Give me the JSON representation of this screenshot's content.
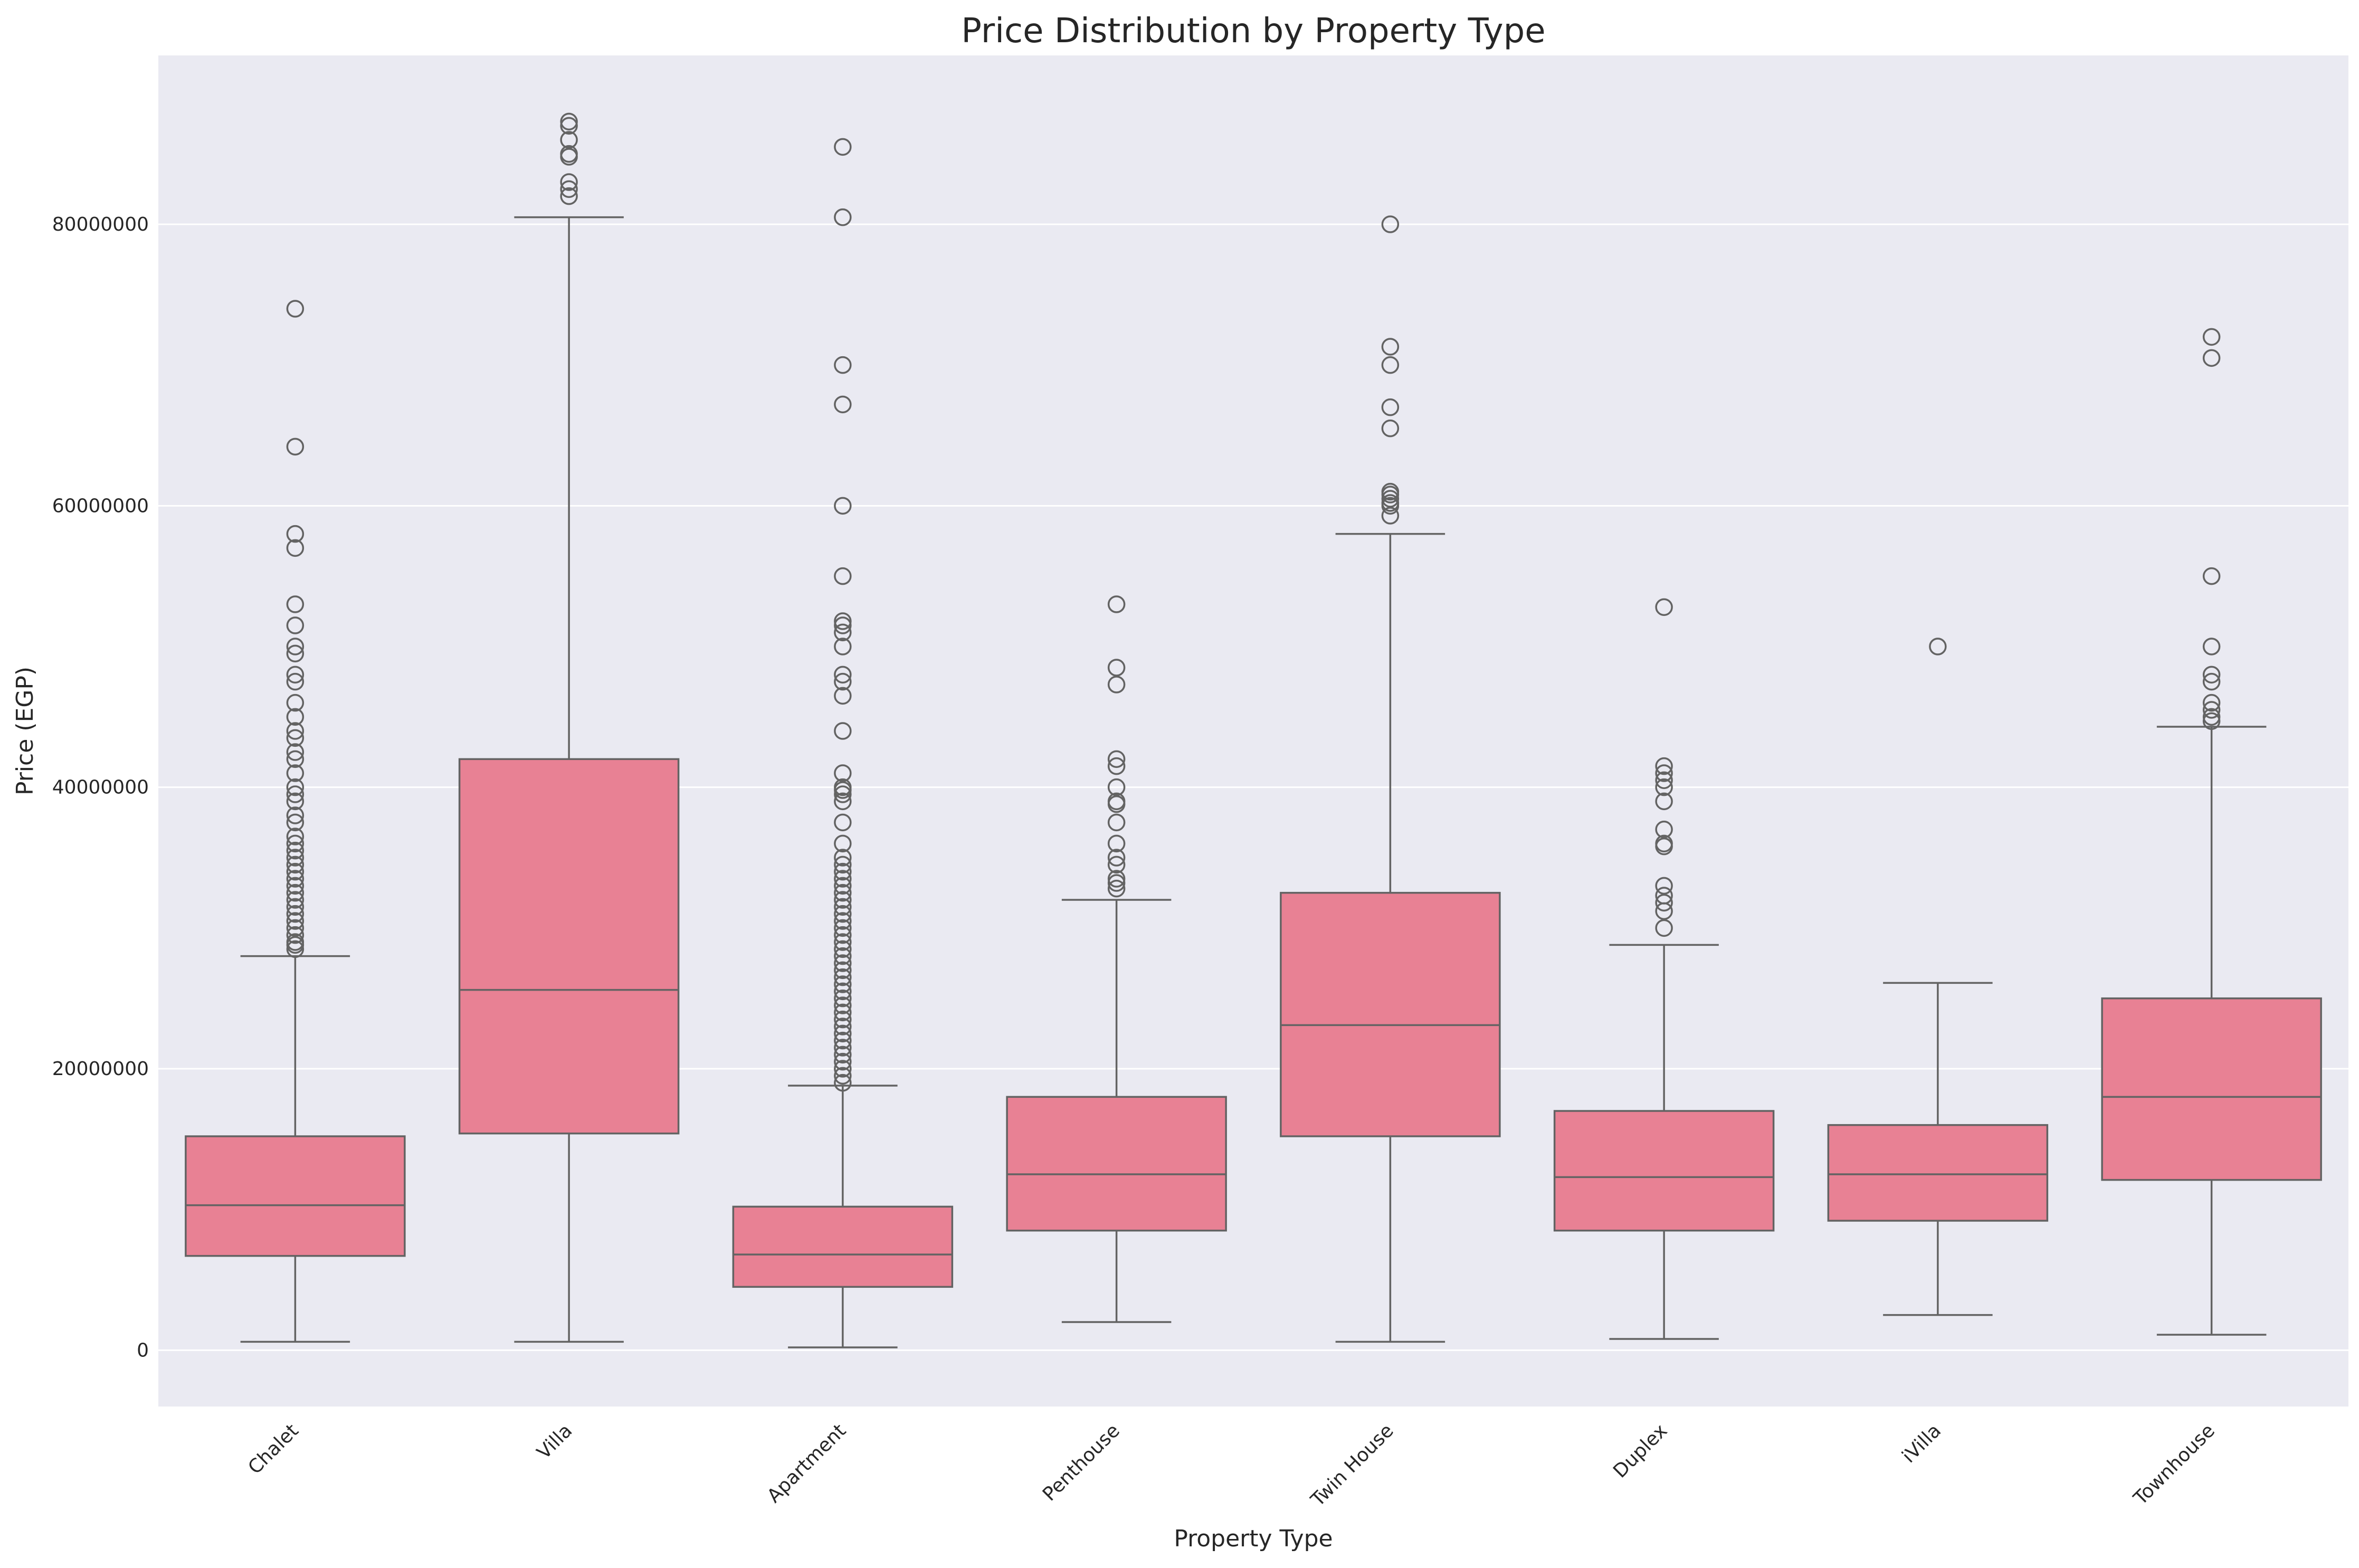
{
  "chart_data": {
    "type": "box",
    "title": "Price Distribution by Property Type",
    "xlabel": "Property Type",
    "ylabel": "Price (EGP)",
    "ylim": [
      -4000000,
      92000000
    ],
    "yticks": [
      0,
      20000000,
      40000000,
      60000000,
      80000000
    ],
    "ytick_labels": [
      "0",
      "20000000",
      "40000000",
      "60000000",
      "80000000"
    ],
    "grid": true,
    "colors": {
      "box": "#e88194",
      "line": "#636363",
      "background": "#eaeaf2",
      "grid": "#ffffff"
    },
    "categories": [
      "Chalet",
      "Villa",
      "Apartment",
      "Penthouse",
      "Twin House",
      "Duplex",
      "iVilla",
      "Townhouse"
    ],
    "boxes": [
      {
        "category": "Chalet",
        "whisker_low": 600000,
        "q1": 6700000,
        "median": 10300000,
        "q3": 15200000,
        "whisker_high": 28000000,
        "outliers": [
          74000000,
          64200000,
          58000000,
          57000000,
          53000000,
          51500000,
          50000000,
          49500000,
          48000000,
          47500000,
          46000000,
          45000000,
          44000000,
          43500000,
          42500000,
          42000000,
          41000000,
          40000000,
          39500000,
          39000000,
          38000000,
          37500000,
          36500000,
          36000000,
          35500000,
          35000000,
          34500000,
          34000000,
          33500000,
          33000000,
          32500000,
          32000000,
          31500000,
          31000000,
          30500000,
          30000000,
          29500000,
          29000000,
          28800000,
          28500000
        ]
      },
      {
        "category": "Villa",
        "whisker_low": 600000,
        "q1": 15400000,
        "median": 25600000,
        "q3": 42000000,
        "whisker_high": 80500000,
        "outliers": [
          87300000,
          87000000,
          86000000,
          85000000,
          84800000,
          83000000,
          82500000,
          82000000
        ]
      },
      {
        "category": "Apartment",
        "whisker_low": 200000,
        "q1": 4500000,
        "median": 6800000,
        "q3": 10200000,
        "whisker_high": 18800000,
        "outliers": [
          85500000,
          80500000,
          70000000,
          67200000,
          60000000,
          55000000,
          51800000,
          51500000,
          51000000,
          50000000,
          48000000,
          47500000,
          46500000,
          44000000,
          41000000,
          40000000,
          39800000,
          39500000,
          39000000,
          37500000,
          36000000,
          35000000,
          34500000,
          34000000,
          33500000,
          33000000,
          32500000,
          32000000,
          31500000,
          31000000,
          30500000,
          30000000,
          29500000,
          29000000,
          28500000,
          28000000,
          27500000,
          27000000,
          26500000,
          26000000,
          25500000,
          25000000,
          24500000,
          24000000,
          23500000,
          23000000,
          22500000,
          22000000,
          21500000,
          21000000,
          20500000,
          20000000,
          19500000,
          19000000
        ]
      },
      {
        "category": "Penthouse",
        "whisker_low": 2000000,
        "q1": 8500000,
        "median": 12500000,
        "q3": 18000000,
        "whisker_high": 32000000,
        "outliers": [
          53000000,
          48500000,
          47300000,
          42000000,
          41500000,
          40000000,
          39000000,
          38800000,
          37500000,
          36000000,
          35000000,
          34500000,
          33500000,
          33200000,
          32800000
        ]
      },
      {
        "category": "Twin House",
        "whisker_low": 600000,
        "q1": 15200000,
        "median": 23100000,
        "q3": 32500000,
        "whisker_high": 58000000,
        "outliers": [
          80000000,
          71300000,
          70000000,
          67000000,
          65500000,
          61000000,
          60800000,
          60500000,
          60200000,
          60000000,
          59300000
        ]
      },
      {
        "category": "Duplex",
        "whisker_low": 800000,
        "q1": 8500000,
        "median": 12300000,
        "q3": 17000000,
        "whisker_high": 28800000,
        "outliers": [
          52800000,
          41500000,
          41000000,
          40500000,
          40000000,
          39000000,
          37000000,
          36000000,
          35800000,
          33000000,
          32300000,
          31800000,
          31200000,
          30000000
        ]
      },
      {
        "category": "iVilla",
        "whisker_low": 2500000,
        "q1": 9200000,
        "median": 12500000,
        "q3": 16000000,
        "whisker_high": 26100000,
        "outliers": [
          50000000
        ]
      },
      {
        "category": "Townhouse",
        "whisker_low": 1100000,
        "q1": 12100000,
        "median": 18000000,
        "q3": 25000000,
        "whisker_high": 44300000,
        "outliers": [
          72000000,
          70500000,
          55000000,
          50000000,
          48000000,
          47500000,
          46000000,
          45500000,
          45000000,
          44700000
        ]
      }
    ]
  }
}
